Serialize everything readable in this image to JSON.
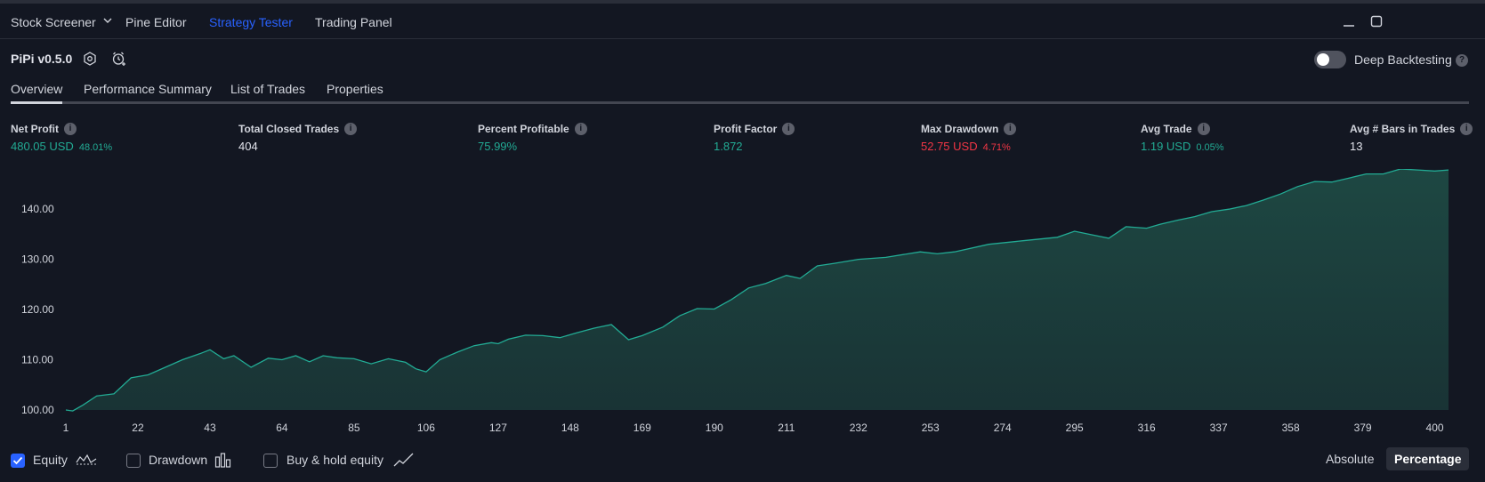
{
  "topbar": {
    "tabs": [
      "Stock Screener",
      "Pine Editor",
      "Strategy Tester",
      "Trading Panel"
    ],
    "active_tab": "Strategy Tester"
  },
  "strategy": {
    "name": "PiPi v0.5.0",
    "deep_backtesting_label": "Deep Backtesting",
    "deep_backtesting_on": false
  },
  "subtabs": [
    "Overview",
    "Performance Summary",
    "List of Trades",
    "Properties"
  ],
  "metrics": [
    {
      "label": "Net Profit",
      "value": "480.05 USD",
      "sub": "48.01%",
      "color": "green"
    },
    {
      "label": "Total Closed Trades",
      "value": "404",
      "sub": "",
      "color": "white"
    },
    {
      "label": "Percent Profitable",
      "value": "75.99%",
      "sub": "",
      "color": "green"
    },
    {
      "label": "Profit Factor",
      "value": "1.872",
      "sub": "",
      "color": "green"
    },
    {
      "label": "Max Drawdown",
      "value": "52.75 USD",
      "sub": "4.71%",
      "color": "red"
    },
    {
      "label": "Avg Trade",
      "value": "1.19 USD",
      "sub": "0.05%",
      "color": "green"
    },
    {
      "label": "Avg # Bars in Trades",
      "value": "13",
      "sub": "",
      "color": "white"
    }
  ],
  "chart_data": {
    "type": "area",
    "title": "",
    "xlabel": "",
    "ylabel": "",
    "x_ticks": [
      "1",
      "22",
      "43",
      "64",
      "85",
      "106",
      "127",
      "148",
      "169",
      "190",
      "211",
      "232",
      "253",
      "274",
      "295",
      "316",
      "337",
      "358",
      "379",
      "400"
    ],
    "y_ticks": [
      "100.00",
      "110.00",
      "120.00",
      "130.00",
      "140.00"
    ],
    "xlim": [
      1,
      404
    ],
    "ylim": [
      100,
      148
    ],
    "line_color": "#22ab94",
    "fill_color": "#1e4a44",
    "series": [
      {
        "x": [
          1,
          3,
          6,
          10,
          15,
          20,
          25,
          30,
          35,
          40,
          43,
          47,
          50,
          55,
          60,
          64,
          68,
          72,
          76,
          80,
          85,
          90,
          95,
          100,
          103,
          106,
          110,
          115,
          120,
          125,
          127,
          130,
          135,
          140,
          145,
          150,
          155,
          160,
          165,
          169,
          175,
          180,
          185,
          190,
          195,
          200,
          205,
          211,
          215,
          220,
          225,
          232,
          240,
          250,
          255,
          260,
          270,
          280,
          290,
          295,
          300,
          305,
          310,
          316,
          320,
          325,
          330,
          335,
          340,
          345,
          350,
          355,
          360,
          365,
          370,
          375,
          380,
          385,
          390,
          395,
          400,
          404
        ],
        "y": [
          100.0,
          99.8,
          101.0,
          102.8,
          103.2,
          106.4,
          107.0,
          108.5,
          110.0,
          111.2,
          112.0,
          110.2,
          110.8,
          108.5,
          110.3,
          110.0,
          110.8,
          109.6,
          110.8,
          110.4,
          110.2,
          109.2,
          110.2,
          109.5,
          108.2,
          107.6,
          110.0,
          111.5,
          112.8,
          113.4,
          113.2,
          114.1,
          114.9,
          114.8,
          114.4,
          115.4,
          116.3,
          117.0,
          114.0,
          114.8,
          116.5,
          118.8,
          120.2,
          120.1,
          122.0,
          124.3,
          125.2,
          126.8,
          126.2,
          128.7,
          129.2,
          130.0,
          130.4,
          131.5,
          131.1,
          131.5,
          133.0,
          133.7,
          134.4,
          135.6,
          134.9,
          134.2,
          136.5,
          136.2,
          137.0,
          137.8,
          138.5,
          139.5,
          140.0,
          140.7,
          141.8,
          143.0,
          144.5,
          145.5,
          145.4,
          146.2,
          147.0,
          147.0,
          148.0,
          147.8,
          147.6,
          147.8
        ]
      }
    ]
  },
  "legend": {
    "equity": "Equity",
    "drawdown": "Drawdown",
    "buyhold": "Buy & hold equity"
  },
  "modes": [
    "Absolute",
    "Percentage"
  ],
  "active_mode": "Percentage"
}
